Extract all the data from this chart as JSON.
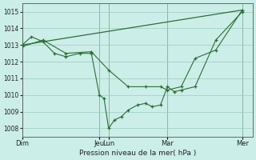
{
  "bg_color": "#cceee8",
  "grid_color": "#99ccbb",
  "line_color": "#2d6e35",
  "xlabel": "Pression niveau de la mer( hPa )",
  "ylim": [
    1007.5,
    1015.5
  ],
  "yticks": [
    1008,
    1009,
    1010,
    1011,
    1012,
    1013,
    1014,
    1015
  ],
  "xlim": [
    0,
    1.0
  ],
  "day_positions": [
    0.0,
    0.335,
    0.375,
    0.63,
    0.955
  ],
  "day_labels": [
    "Dim",
    "Jeu",
    "Lun",
    "Mar",
    "Mer"
  ],
  "series_diagonal": {
    "x": [
      0.0,
      0.955
    ],
    "y": [
      1013.0,
      1015.1
    ]
  },
  "series_detailed": {
    "x": [
      0.0,
      0.04,
      0.09,
      0.14,
      0.19,
      0.25,
      0.3,
      0.335,
      0.355,
      0.375,
      0.4,
      0.43,
      0.46,
      0.5,
      0.535,
      0.565,
      0.6,
      0.63,
      0.66,
      0.69,
      0.75,
      0.84,
      0.955
    ],
    "y": [
      1013.0,
      1013.5,
      1013.2,
      1012.5,
      1012.3,
      1012.5,
      1012.5,
      1010.0,
      1009.8,
      1008.0,
      1008.5,
      1008.7,
      1009.1,
      1009.4,
      1009.5,
      1009.3,
      1009.4,
      1010.5,
      1010.2,
      1010.3,
      1010.5,
      1013.3,
      1015.0
    ]
  },
  "series_medium": {
    "x": [
      0.0,
      0.09,
      0.19,
      0.3,
      0.375,
      0.46,
      0.535,
      0.6,
      0.63,
      0.69,
      0.75,
      0.84,
      0.955
    ],
    "y": [
      1012.9,
      1013.3,
      1012.5,
      1012.6,
      1011.5,
      1010.5,
      1010.5,
      1010.5,
      1010.3,
      1010.5,
      1012.2,
      1012.7,
      1015.1
    ]
  }
}
